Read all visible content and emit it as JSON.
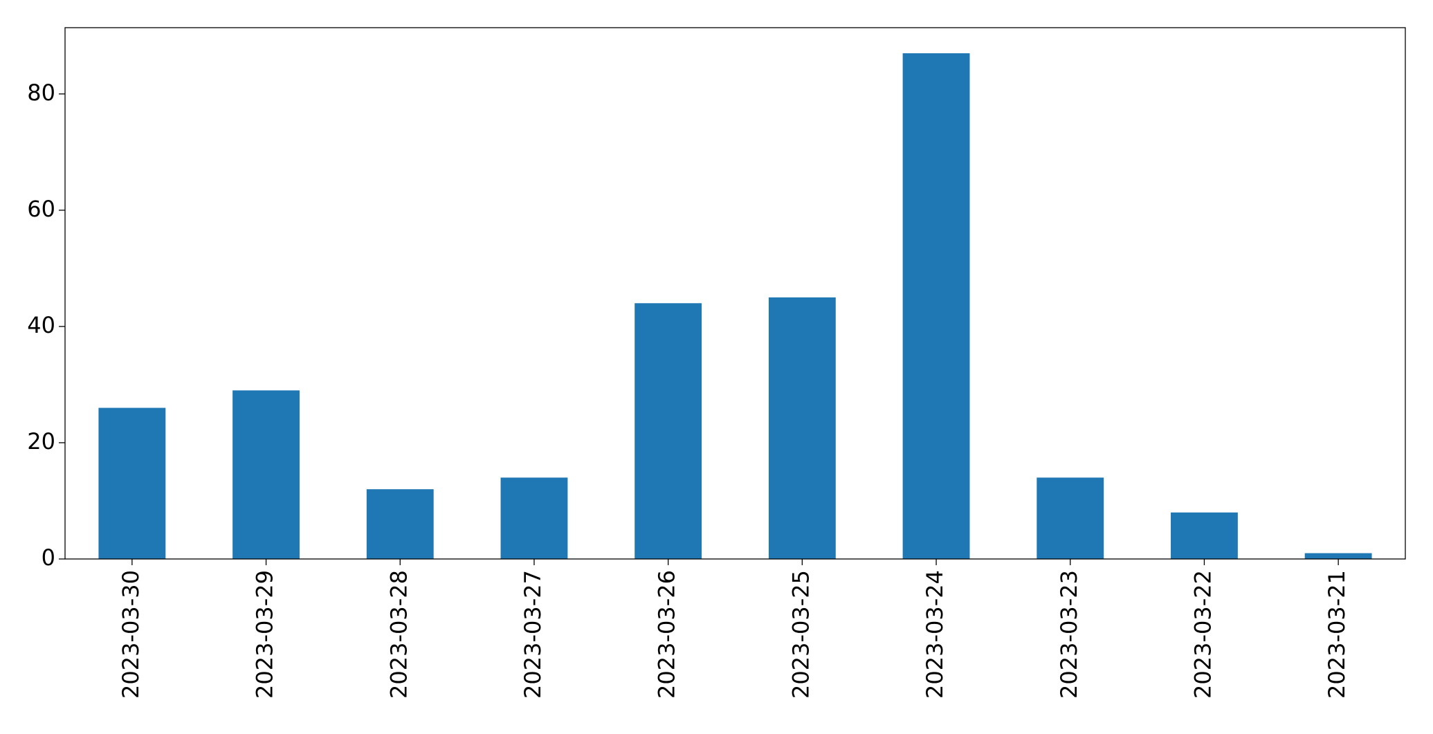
{
  "chart_data": {
    "type": "bar",
    "categories": [
      "2023-03-30",
      "2023-03-29",
      "2023-03-28",
      "2023-03-27",
      "2023-03-26",
      "2023-03-25",
      "2023-03-24",
      "2023-03-23",
      "2023-03-22",
      "2023-03-21"
    ],
    "values": [
      26,
      29,
      12,
      14,
      44,
      45,
      87,
      14,
      8,
      1
    ],
    "color": "#1f77b4",
    "ylim": [
      0,
      91.4
    ],
    "yticks": [
      0,
      20,
      40,
      60,
      80
    ],
    "grid": false
  }
}
